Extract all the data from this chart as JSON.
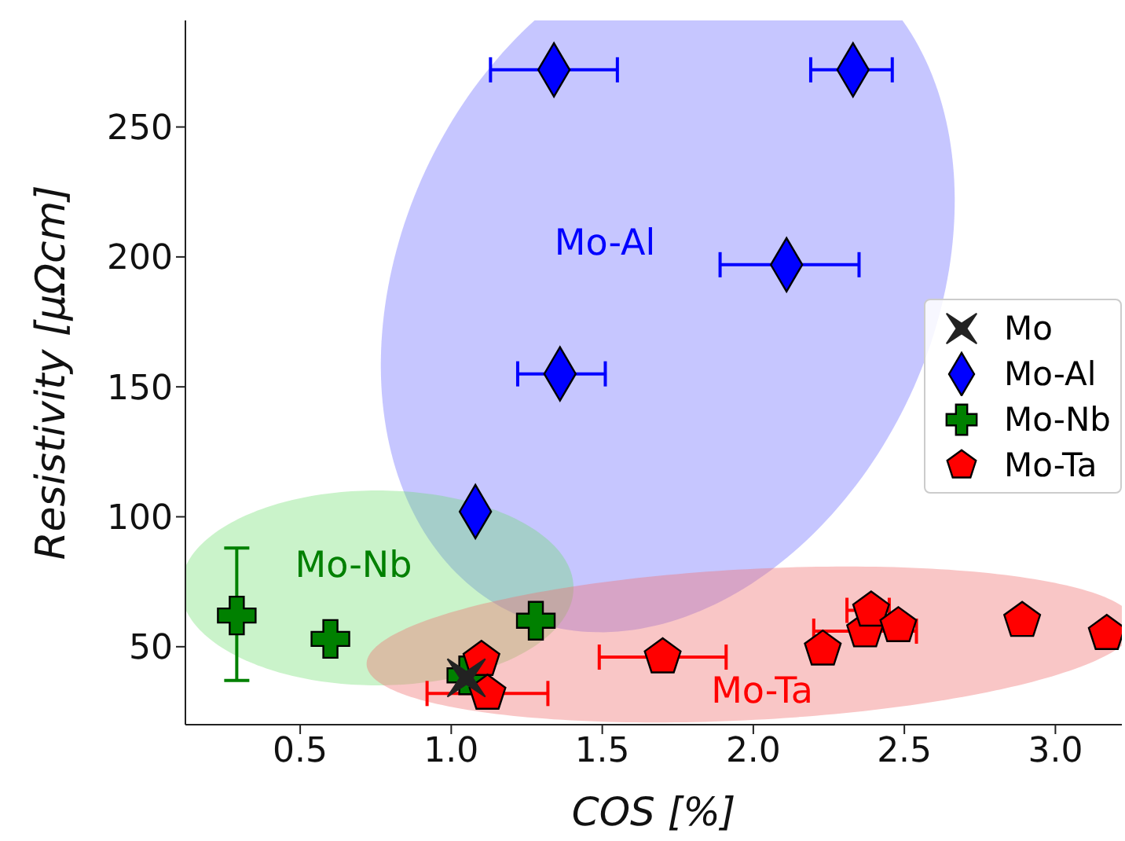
{
  "chart_data": {
    "type": "scatter",
    "xlabel": "COS [%]",
    "ylabel": "Resistivity [μΩcm]",
    "xlim": [
      0.12,
      3.22
    ],
    "xticks": [
      {
        "value": 0.5,
        "label": "0.5"
      },
      {
        "value": 1,
        "label": "1.0"
      },
      {
        "value": 1.5,
        "label": "1.5"
      },
      {
        "value": 2,
        "label": "2.0"
      },
      {
        "value": 2.5,
        "label": "2.5"
      },
      {
        "value": 3,
        "label": "3.0"
      }
    ],
    "ylim": [
      20,
      291
    ],
    "yticks": [
      50,
      100,
      150,
      200,
      250
    ],
    "grid": false,
    "legend": "right",
    "series": [
      {
        "name": "Mo",
        "color": "#222222",
        "marker": "star",
        "x": [
          1.05
        ],
        "values": [
          38
        ]
      },
      {
        "name": "Mo-Al",
        "color": "#0000ff",
        "marker": "diamond",
        "x": [
          1.34,
          2.33,
          2.11,
          1.36,
          1.08
        ],
        "values": [
          272,
          272,
          197,
          155,
          102
        ],
        "xerrors": [
          [
            1.13,
            1.55
          ],
          [
            2.19,
            2.46
          ],
          [
            1.89,
            2.35
          ],
          [
            1.22,
            1.51
          ],
          null
        ]
      },
      {
        "name": "Mo-Nb",
        "color": "#008000",
        "marker": "cross",
        "x": [
          0.29,
          0.6,
          1.28,
          1.05
        ],
        "values": [
          62,
          53,
          60,
          39
        ],
        "errors": [
          [
            37,
            88
          ],
          null,
          null,
          null
        ]
      },
      {
        "name": "Mo-Ta",
        "color": "#ff0000",
        "x": [
          1.1,
          1.12,
          1.7,
          2.23,
          2.37,
          2.39,
          2.48,
          2.89,
          3.17
        ],
        "values": [
          45,
          32,
          46,
          49,
          56,
          64,
          58,
          60,
          55
        ],
        "xerrors": [
          null,
          [
            0.92,
            1.32
          ],
          [
            1.49,
            1.91
          ],
          null,
          [
            2.2,
            2.54
          ],
          [
            2.31,
            2.45
          ],
          null,
          null,
          null
        ]
      }
    ],
    "annotations": [
      "Mo-Al",
      "Mo-Nb",
      "Mo-Ta"
    ]
  }
}
